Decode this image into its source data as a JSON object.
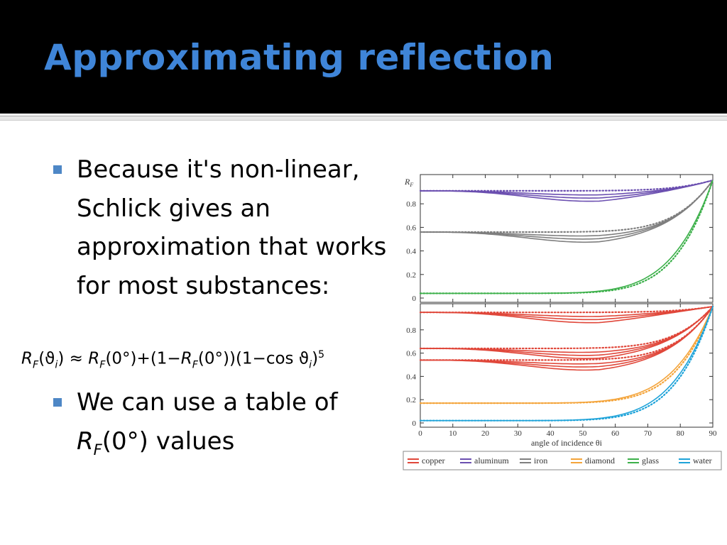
{
  "slide": {
    "title": "Approximating reflection",
    "bullet1": "Because it's non-linear, Schlick gives an approximation that works for most substances:",
    "bullet2_prefix": "We can use a table of",
    "bullet2_symbol_base": "R",
    "bullet2_symbol_sub": "F",
    "bullet2_suffix": "(0°) values",
    "formula": {
      "lhs_base": "R",
      "lhs_sub": "F",
      "lhs_arg": "(ϑ",
      "lhs_arg_sub": "i",
      "lhs_close": ")",
      "approx": " ≈ ",
      "r0_base": "R",
      "r0_sub": "F",
      "r0_arg": "(0°)",
      "plus": "+(1−",
      "r0b_base": "R",
      "r0b_sub": "F",
      "r0b_arg": "(0°))",
      "cos_part": "(1−cos ϑ",
      "cos_sub": "i",
      "cos_close": ")",
      "exponent": "5"
    },
    "colors": {
      "title": "#3f85d8",
      "title_bar": "#000000",
      "bullet_marker": "#4e87c6"
    }
  },
  "chart_data": [
    {
      "type": "line",
      "panel": "top",
      "ylabel": "R_F",
      "ylim": [
        0,
        1
      ],
      "xlim": [
        0,
        90
      ],
      "yticks": [
        "0",
        "0.2",
        "0.4",
        "0.6",
        "0.8"
      ],
      "line_style": "solid = exact Fresnel, dotted = Schlick approximation",
      "series": [
        {
          "name": "aluminum",
          "color": "#6b4fb0",
          "R0": 0.91
        },
        {
          "name": "iron",
          "color": "#7f7f7f",
          "R0": 0.56
        },
        {
          "name": "glass",
          "color": "#3cb04a",
          "R0": 0.04
        }
      ]
    },
    {
      "type": "line",
      "panel": "bottom",
      "xlabel": "angle of incidence θi",
      "ylim": [
        0,
        1
      ],
      "xlim": [
        0,
        90
      ],
      "xticks": [
        "0",
        "10",
        "20",
        "30",
        "40",
        "50",
        "60",
        "70",
        "80",
        "90"
      ],
      "yticks": [
        "0",
        "0.2",
        "0.4",
        "0.6",
        "0.8"
      ],
      "series": [
        {
          "name": "copper",
          "color": "#e0473a",
          "R0": [
            0.95,
            0.64,
            0.54
          ]
        },
        {
          "name": "diamond",
          "color": "#f4a43a",
          "R0": 0.17
        },
        {
          "name": "water",
          "color": "#1ea3d9",
          "R0": 0.02
        }
      ]
    }
  ],
  "legend": [
    {
      "label": "copper",
      "color": "#e0473a"
    },
    {
      "label": "aluminum",
      "color": "#6b4fb0"
    },
    {
      "label": "iron",
      "color": "#7f7f7f"
    },
    {
      "label": "diamond",
      "color": "#f4a43a"
    },
    {
      "label": "glass",
      "color": "#3cb04a"
    },
    {
      "label": "water",
      "color": "#1ea3d9"
    }
  ]
}
